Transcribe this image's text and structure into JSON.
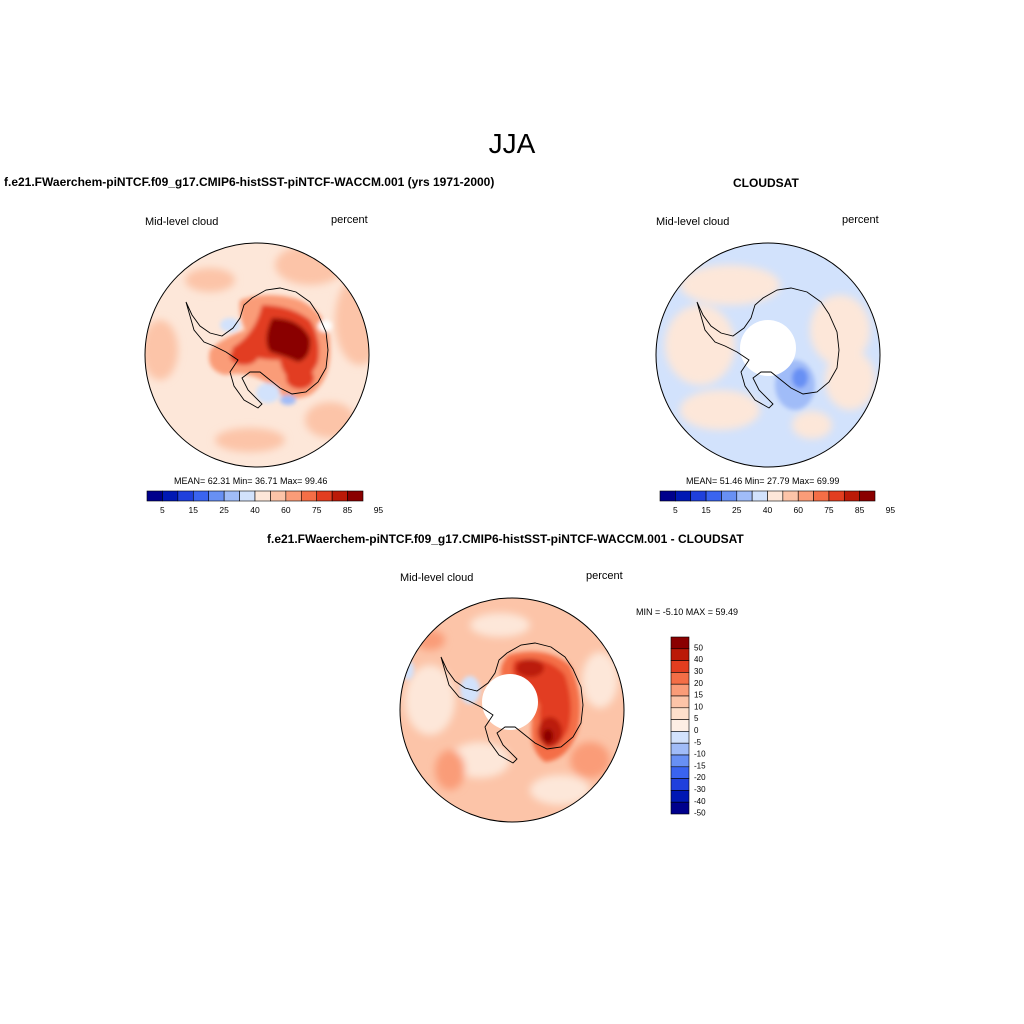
{
  "figure": {
    "season": "JJA",
    "panels": [
      {
        "title": "f.e21.FWaerchem-piNTCF.f09_g17.CMIP6-histSST-piNTCF-WACCM.001 (yrs 1971-2000)",
        "left_label": "Mid-level cloud",
        "right_label": "percent",
        "stats": "MEAN=  62.31  Min=  36.71  Max=  99.46",
        "colorbar": {
          "ticks": [
            "5",
            "15",
            "25",
            "40",
            "60",
            "75",
            "85",
            "95"
          ],
          "colors": [
            "#00008c",
            "#0018b4",
            "#1f40dc",
            "#3a64f0",
            "#6890f4",
            "#a0bcf8",
            "#d2e2fc",
            "#fde7d9",
            "#fcc4a8",
            "#fa9c78",
            "#f46e46",
            "#e23e20",
            "#bb1a08",
            "#8a0000"
          ]
        }
      },
      {
        "title": "CLOUDSAT",
        "left_label": "Mid-level cloud",
        "right_label": "percent",
        "stats": "MEAN=  51.46  Min=  27.79  Max=  69.99",
        "colorbar": {
          "ticks": [
            "5",
            "15",
            "25",
            "40",
            "60",
            "75",
            "85",
            "95"
          ],
          "colors": [
            "#00008c",
            "#0018b4",
            "#1f40dc",
            "#3a64f0",
            "#6890f4",
            "#a0bcf8",
            "#d2e2fc",
            "#fde7d9",
            "#fcc4a8",
            "#fa9c78",
            "#f46e46",
            "#e23e20",
            "#bb1a08",
            "#8a0000"
          ]
        }
      },
      {
        "title": "f.e21.FWaerchem-piNTCF.f09_g17.CMIP6-histSST-piNTCF-WACCM.001 - CLOUDSAT",
        "left_label": "Mid-level cloud",
        "right_label": "percent",
        "stats": "MIN =  -5.10 MAX =  59.49",
        "colorbar": {
          "ticks": [
            "50",
            "40",
            "30",
            "20",
            "15",
            "10",
            "5",
            "0",
            "-5",
            "-10",
            "-15",
            "-20",
            "-30",
            "-40",
            "-50"
          ],
          "colors": [
            "#8a0000",
            "#bb1a08",
            "#e23e20",
            "#f46e46",
            "#fa9c78",
            "#fcc4a8",
            "#fde0cc",
            "#fdeee4",
            "#d2e2fc",
            "#a0bcf8",
            "#6890f4",
            "#3a64f0",
            "#1f40dc",
            "#0018b4",
            "#00008c"
          ]
        }
      }
    ]
  }
}
